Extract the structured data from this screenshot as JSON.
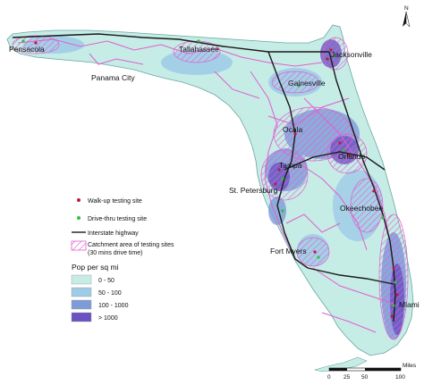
{
  "colors": {
    "density_0_50": "#c6ece6",
    "density_50_100": "#9ecbe6",
    "density_100_1000": "#7e9bd8",
    "density_gt_1000": "#6a52c2",
    "catchment": "#e05fd0",
    "walkup": "#c0193a",
    "drivethru": "#2fbf3a",
    "interstate": "#1a1a1a"
  },
  "cities": [
    {
      "name": "Pensacola"
    },
    {
      "name": "Tallahassee"
    },
    {
      "name": "Jacksonville"
    },
    {
      "name": "Panama City"
    },
    {
      "name": "Gainesville"
    },
    {
      "name": "Ocala"
    },
    {
      "name": "Orlando"
    },
    {
      "name": "Tampa"
    },
    {
      "name": "St. Petersburg"
    },
    {
      "name": "Okeechobee"
    },
    {
      "name": "Fort Myers"
    },
    {
      "name": "Miami"
    }
  ],
  "legend": {
    "walkup": "Walk-up testing site",
    "drivethru": "Drive-thru testing site",
    "interstate": "Interstate highway",
    "catchment_line1": "Catchment area of testing sites",
    "catchment_line2": "(30 mins drive time)",
    "pop_title": "Pop per sq mi",
    "pop_classes": [
      "0 - 50",
      "50 - 100",
      "100 - 1000",
      "> 1000"
    ]
  },
  "north_label": "N",
  "scale": {
    "unit": "Miles",
    "ticks": [
      "0",
      "25",
      "50",
      "100"
    ]
  }
}
